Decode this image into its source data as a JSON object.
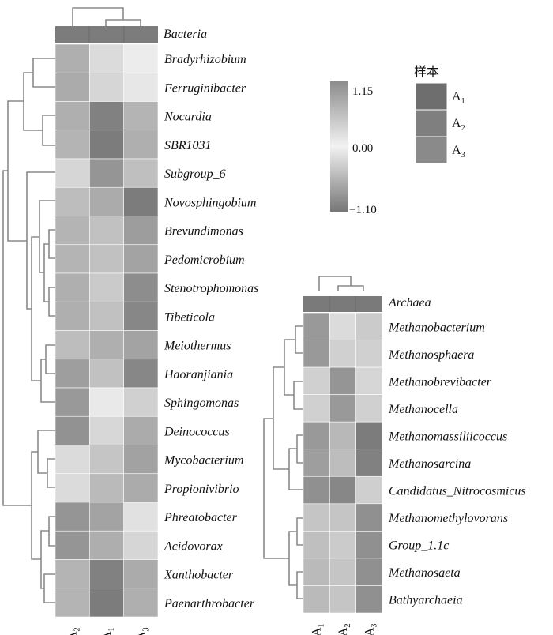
{
  "chart_data": [
    {
      "type": "heatmap",
      "columns": [
        "A2",
        "A1",
        "A3"
      ],
      "column_labels": [
        {
          "base": "A",
          "sub": "2"
        },
        {
          "base": "A",
          "sub": "1"
        },
        {
          "base": "A",
          "sub": "3"
        }
      ],
      "annotation_row": "Bacteria",
      "rows": [
        "Bradyrhizobium",
        "Ferruginibacter",
        "Nocardia",
        "SBR1031",
        "Subgroup_6",
        "Novosphingobium",
        "Brevundimonas",
        "Pedomicrobium",
        "Stenotrophomonas",
        "Tibeticola",
        "Meiothermus",
        "Haoranjiania",
        "Sphingomonas",
        "Deinococcus",
        "Mycobacterium",
        "Propionivibrio",
        "Phreatobacter",
        "Acidovorax",
        "Xanthobacter",
        "Paenarthrobacter"
      ],
      "values": [
        [
          0.75,
          -0.2,
          -0.05
        ],
        [
          0.8,
          -0.25,
          -0.1
        ],
        [
          0.75,
          -1.0,
          0.7
        ],
        [
          0.7,
          -1.05,
          0.75
        ],
        [
          -0.25,
          1.05,
          -0.45
        ],
        [
          0.6,
          0.8,
          -1.05
        ],
        [
          0.7,
          0.55,
          -0.75
        ],
        [
          0.7,
          0.55,
          -0.7
        ],
        [
          0.75,
          0.45,
          -0.9
        ],
        [
          0.75,
          0.55,
          -0.95
        ],
        [
          0.6,
          0.75,
          -0.7
        ],
        [
          0.95,
          0.55,
          -0.95
        ],
        [
          1.0,
          0.1,
          -0.3
        ],
        [
          -0.85,
          0.3,
          0.8
        ],
        [
          -0.2,
          -0.4,
          0.9
        ],
        [
          -0.2,
          -0.5,
          0.8
        ],
        [
          1.05,
          -0.7,
          -0.15
        ],
        [
          1.05,
          -0.6,
          -0.25
        ],
        [
          0.7,
          -1.0,
          0.8
        ],
        [
          0.7,
          -1.05,
          0.75
        ]
      ]
    },
    {
      "type": "heatmap",
      "columns": [
        "A1",
        "A2",
        "A3"
      ],
      "column_labels": [
        {
          "base": "A",
          "sub": "1"
        },
        {
          "base": "A",
          "sub": "2"
        },
        {
          "base": "A",
          "sub": "3"
        }
      ],
      "annotation_row": "Archaea",
      "rows": [
        "Methanobacterium",
        "Methanosphaera",
        "Methanobrevibacter",
        "Methanocella",
        "Methanomassiliicoccus",
        "Methanosarcina",
        "Candidatus_Nitrocosmicus",
        "Methanomethylovorans",
        "Group_1.1c",
        "Methanosaeta",
        "Bathyarchaeia"
      ],
      "values": [
        [
          1.0,
          -0.2,
          -0.35
        ],
        [
          1.0,
          -0.3,
          -0.3
        ],
        [
          -0.3,
          1.05,
          -0.25
        ],
        [
          -0.3,
          1.0,
          -0.3
        ],
        [
          1.0,
          0.65,
          -1.05
        ],
        [
          0.95,
          0.6,
          -1.0
        ],
        [
          1.1,
          -0.95,
          0.4
        ],
        [
          -0.4,
          -0.4,
          1.1
        ],
        [
          -0.45,
          -0.35,
          1.1
        ],
        [
          -0.5,
          -0.4,
          1.1
        ],
        [
          -0.5,
          -0.4,
          1.1
        ]
      ]
    }
  ],
  "color_scale": {
    "max_label": "1.15",
    "mid_label": "0.00",
    "min_label": "−1.10",
    "max_color": "#8c8c8c",
    "mid_color": "#f2f2f2",
    "min_color": "#767676"
  },
  "sample_legend": {
    "title": "样本",
    "items": [
      {
        "base": "A",
        "sub": "1",
        "color": "#6e6e6e"
      },
      {
        "base": "A",
        "sub": "2",
        "color": "#7f7f7f"
      },
      {
        "base": "A",
        "sub": "3",
        "color": "#8a8a8a"
      }
    ]
  }
}
